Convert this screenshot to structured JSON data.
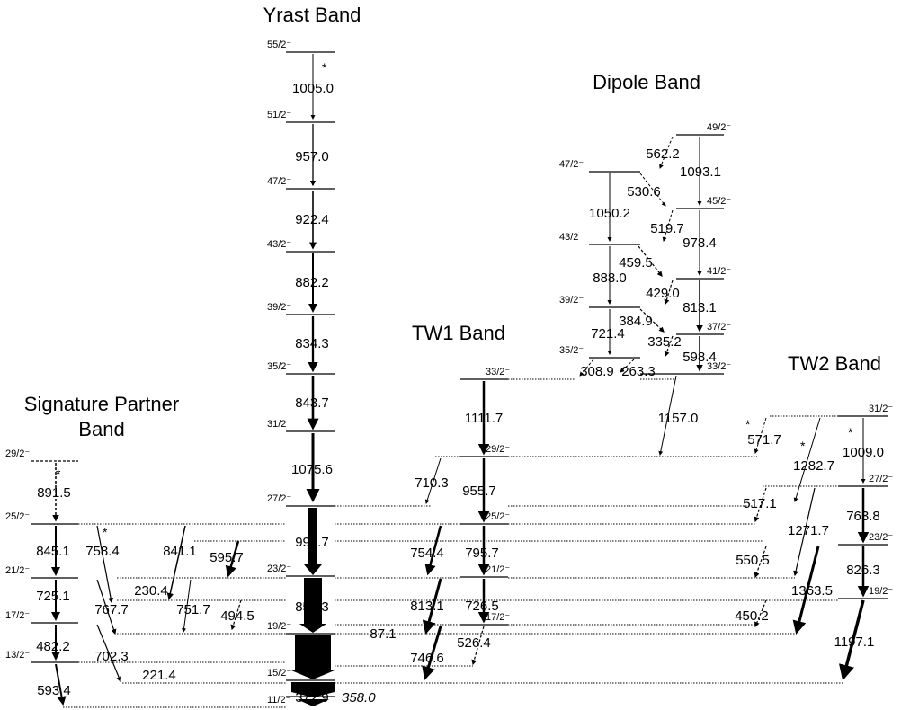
{
  "bands": {
    "yrast": "Yrast Band",
    "dipole": "Dipole Band",
    "tw1": "TW1 Band",
    "tw2": "TW2 Band",
    "sp1": "Signature Partner",
    "sp2": "Band"
  },
  "spins": {
    "y55": "55/2⁻",
    "y51": "51/2⁻",
    "y47": "47/2⁻",
    "y43": "43/2⁻",
    "y39": "39/2⁻",
    "y35": "35/2⁻",
    "y31": "31/2⁻",
    "y27": "27/2⁻",
    "y23": "23/2⁻",
    "y19": "19/2⁻",
    "y15": "15/2⁻",
    "y11": "11/2⁻",
    "d49": "49/2⁻",
    "d47": "47/2⁻",
    "d45": "45/2⁻",
    "d43": "43/2⁻",
    "d41": "41/2⁻",
    "d39": "39/2⁻",
    "d37": "37/2⁻",
    "d35": "35/2⁻",
    "d33": "33/2⁻",
    "t33": "33/2⁻",
    "t29": "29/2⁻",
    "t25": "25/2⁻",
    "t21": "21/2⁻",
    "t17": "17/2⁻",
    "w31": "31/2⁻",
    "w27": "27/2⁻",
    "w23": "23/2⁻",
    "w19": "19/2⁻",
    "s29": "29/2⁻",
    "s25": "25/2⁻",
    "s21": "21/2⁻",
    "s17": "17/2⁻",
    "s13": "13/2⁻"
  },
  "energies": {
    "y1005": "1005.0",
    "y957": "957.0",
    "y922": "922.4",
    "y882": "882.2",
    "y834": "834.3",
    "y843": "843.7",
    "y1075": "1075.6",
    "y999": "999.7",
    "y854": "854.3",
    "y659": "659.8",
    "y372": "372.9",
    "y358": "358.0",
    "d562": "562.2",
    "d1093": "1093.1",
    "d530": "530.6",
    "d1050": "1050.2",
    "d519": "519.7",
    "d978": "978.4",
    "d459": "459.5",
    "d888": "888.0",
    "d429": "429.0",
    "d813": "813.1",
    "d384": "384.9",
    "d721": "721.4",
    "d335": "335.2",
    "d598": "598.4",
    "d308": "308.9",
    "d263": "263.3",
    "d1157": "1157.0",
    "t1111": "1111.7",
    "t710": "710.3",
    "t955": "955.7",
    "t754": "754.4",
    "t795": "795.7",
    "t813": "813.1",
    "t726": "726.5",
    "t87": "87.1",
    "t746": "746.6",
    "t526": "526.4",
    "w571": "571.7",
    "w1282": "1282.7",
    "w1009": "1009.0",
    "w517": "517.1",
    "w763": "763.8",
    "w1271": "1271.7",
    "w550": "550.5",
    "w826": "826.3",
    "w1363": "1363.5",
    "w450": "450.2",
    "w1197": "1197.1",
    "s891": "891.5",
    "s758": "758.4",
    "s845": "845.1",
    "s841": "841.1",
    "s595": "595.7",
    "s230": "230.4",
    "s725": "725.1",
    "s767": "767.7",
    "s751": "751.7",
    "s494": "494.5",
    "s482": "482.2",
    "s702": "702.3",
    "s221": "221.4",
    "s593": "593.4"
  },
  "stars": {
    "mark": "*"
  }
}
